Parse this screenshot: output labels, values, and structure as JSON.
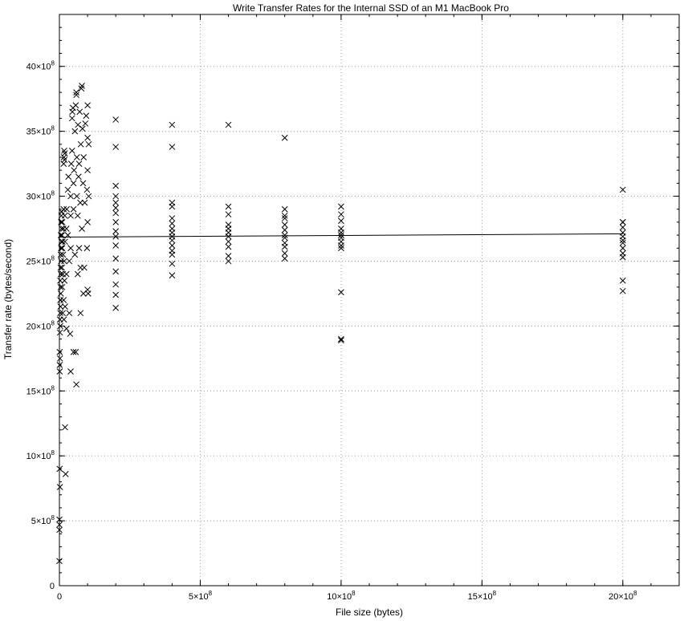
{
  "chart_data": {
    "type": "scatter",
    "title": "Write Transfer Rates for the Internal SSD of an M1 MacBook Pro",
    "xlabel": "File size (bytes)",
    "ylabel": "Transfer rate (bytes/second)",
    "xlim": [
      0,
      2200000000
    ],
    "ylim": [
      0,
      4400000000
    ],
    "x_major_ticks": [
      0,
      500000000,
      1000000000,
      1500000000,
      2000000000
    ],
    "y_major_ticks": [
      0,
      500000000,
      1000000000,
      1500000000,
      2000000000,
      2500000000,
      3000000000,
      3500000000,
      4000000000
    ],
    "x_tick_labels": [
      {
        "base": "0",
        "exp": ""
      },
      {
        "base": "5×10",
        "exp": "8"
      },
      {
        "base": "10×10",
        "exp": "8"
      },
      {
        "base": "15×10",
        "exp": "8"
      },
      {
        "base": "20×10",
        "exp": "8"
      }
    ],
    "y_tick_labels": [
      {
        "base": "0",
        "exp": ""
      },
      {
        "base": "5×10",
        "exp": "8"
      },
      {
        "base": "10×10",
        "exp": "8"
      },
      {
        "base": "15×10",
        "exp": "8"
      },
      {
        "base": "20×10",
        "exp": "8"
      },
      {
        "base": "25×10",
        "exp": "8"
      },
      {
        "base": "30×10",
        "exp": "8"
      },
      {
        "base": "35×10",
        "exp": "8"
      },
      {
        "base": "40×10",
        "exp": "8"
      }
    ],
    "grid": true,
    "marker": "x",
    "series": [
      {
        "points": [
          [
            0,
            190000000
          ],
          [
            0,
            430000000
          ],
          [
            0,
            470000000
          ],
          [
            0,
            510000000
          ],
          [
            1000000,
            900000000
          ],
          [
            2000000,
            760000000
          ],
          [
            1000000,
            1650000000
          ],
          [
            1000000,
            1700000000
          ],
          [
            2000000,
            1750000000
          ],
          [
            1000000,
            1800000000
          ],
          [
            2000000,
            1950000000
          ],
          [
            3000000,
            2000000000
          ],
          [
            2000000,
            2050000000
          ],
          [
            3000000,
            2100000000
          ],
          [
            4000000,
            2150000000
          ],
          [
            3000000,
            2200000000
          ],
          [
            5000000,
            2250000000
          ],
          [
            4000000,
            2300000000
          ],
          [
            3000000,
            2350000000
          ],
          [
            5000000,
            2400000000
          ],
          [
            4000000,
            2450000000
          ],
          [
            6000000,
            2500000000
          ],
          [
            5000000,
            2550000000
          ],
          [
            6000000,
            2600000000
          ],
          [
            7000000,
            2650000000
          ],
          [
            5000000,
            2700000000
          ],
          [
            8000000,
            2750000000
          ],
          [
            6000000,
            2800000000
          ],
          [
            7000000,
            2850000000
          ],
          [
            8000000,
            2880000000
          ],
          [
            9000000,
            2700000000
          ],
          [
            9000000,
            2450000000
          ],
          [
            10000000,
            2300000000
          ],
          [
            10000000,
            2600000000
          ],
          [
            11000000,
            2650000000
          ],
          [
            10000000,
            2800000000
          ],
          [
            12000000,
            2100000000
          ],
          [
            12000000,
            2400000000
          ],
          [
            13000000,
            2550000000
          ],
          [
            14000000,
            2750000000
          ],
          [
            15000000,
            2200000000
          ],
          [
            15000000,
            2900000000
          ],
          [
            16000000,
            2050000000
          ],
          [
            17000000,
            2500000000
          ],
          [
            18000000,
            2350000000
          ],
          [
            19000000,
            2850000000
          ],
          [
            20000000,
            2150000000
          ],
          [
            20000000,
            2650000000
          ],
          [
            15000000,
            3250000000
          ],
          [
            16000000,
            3300000000
          ],
          [
            17000000,
            3350000000
          ],
          [
            18000000,
            3280000000
          ],
          [
            19000000,
            3330000000
          ],
          [
            20000000,
            1220000000
          ],
          [
            22000000,
            860000000
          ],
          [
            25000000,
            1980000000
          ],
          [
            25000000,
            2400000000
          ],
          [
            25000000,
            2750000000
          ],
          [
            26000000,
            2900000000
          ],
          [
            30000000,
            2700000000
          ],
          [
            30000000,
            3050000000
          ],
          [
            32000000,
            3150000000
          ],
          [
            35000000,
            2500000000
          ],
          [
            35000000,
            2100000000
          ],
          [
            38000000,
            1940000000
          ],
          [
            40000000,
            1650000000
          ],
          [
            40000000,
            2600000000
          ],
          [
            40000000,
            2850000000
          ],
          [
            40000000,
            3000000000
          ],
          [
            42000000,
            3250000000
          ],
          [
            45000000,
            3350000000
          ],
          [
            45000000,
            3600000000
          ],
          [
            46000000,
            3650000000
          ],
          [
            48000000,
            3680000000
          ],
          [
            50000000,
            1800000000
          ],
          [
            50000000,
            2900000000
          ],
          [
            50000000,
            3100000000
          ],
          [
            52000000,
            3200000000
          ],
          [
            55000000,
            3500000000
          ],
          [
            55000000,
            2550000000
          ],
          [
            58000000,
            3700000000
          ],
          [
            58000000,
            1800000000
          ],
          [
            60000000,
            3780000000
          ],
          [
            60000000,
            3800000000
          ],
          [
            60000000,
            1550000000
          ],
          [
            62000000,
            3000000000
          ],
          [
            62000000,
            3300000000
          ],
          [
            65000000,
            2400000000
          ],
          [
            65000000,
            2850000000
          ],
          [
            66000000,
            3550000000
          ],
          [
            68000000,
            3150000000
          ],
          [
            70000000,
            2600000000
          ],
          [
            70000000,
            3250000000
          ],
          [
            72000000,
            3650000000
          ],
          [
            74000000,
            2950000000
          ],
          [
            75000000,
            2100000000
          ],
          [
            75000000,
            2450000000
          ],
          [
            76000000,
            3400000000
          ],
          [
            78000000,
            3830000000
          ],
          [
            80000000,
            3850000000
          ],
          [
            80000000,
            2750000000
          ],
          [
            82000000,
            3520000000
          ],
          [
            84000000,
            3100000000
          ],
          [
            85000000,
            2250000000
          ],
          [
            86000000,
            3300000000
          ],
          [
            88000000,
            2450000000
          ],
          [
            90000000,
            2950000000
          ],
          [
            92000000,
            3560000000
          ],
          [
            95000000,
            3620000000
          ],
          [
            98000000,
            2600000000
          ],
          [
            98000000,
            3050000000
          ],
          [
            100000000,
            2280000000
          ],
          [
            100000000,
            2800000000
          ],
          [
            100000000,
            3200000000
          ],
          [
            100000000,
            3450000000
          ],
          [
            100000000,
            3700000000
          ],
          [
            102000000,
            2250000000
          ],
          [
            104000000,
            3000000000
          ],
          [
            104000000,
            3400000000
          ],
          [
            200000000,
            2140000000
          ],
          [
            200000000,
            2240000000
          ],
          [
            200000000,
            2320000000
          ],
          [
            200000000,
            2420000000
          ],
          [
            200000000,
            2520000000
          ],
          [
            200000000,
            2620000000
          ],
          [
            200000000,
            2690000000
          ],
          [
            200000000,
            2730000000
          ],
          [
            200000000,
            2800000000
          ],
          [
            200000000,
            2870000000
          ],
          [
            200000000,
            2910000000
          ],
          [
            200000000,
            2950000000
          ],
          [
            200000000,
            3000000000
          ],
          [
            200000000,
            3080000000
          ],
          [
            200000000,
            3380000000
          ],
          [
            200000000,
            3590000000
          ],
          [
            400000000,
            2390000000
          ],
          [
            400000000,
            2480000000
          ],
          [
            400000000,
            2550000000
          ],
          [
            400000000,
            2580000000
          ],
          [
            400000000,
            2620000000
          ],
          [
            400000000,
            2660000000
          ],
          [
            400000000,
            2690000000
          ],
          [
            400000000,
            2720000000
          ],
          [
            400000000,
            2750000000
          ],
          [
            400000000,
            2790000000
          ],
          [
            400000000,
            2830000000
          ],
          [
            400000000,
            2920000000
          ],
          [
            400000000,
            2950000000
          ],
          [
            400000000,
            3380000000
          ],
          [
            400000000,
            3550000000
          ],
          [
            600000000,
            2500000000
          ],
          [
            600000000,
            2540000000
          ],
          [
            600000000,
            2610000000
          ],
          [
            600000000,
            2650000000
          ],
          [
            600000000,
            2690000000
          ],
          [
            600000000,
            2720000000
          ],
          [
            600000000,
            2750000000
          ],
          [
            600000000,
            2780000000
          ],
          [
            600000000,
            2860000000
          ],
          [
            600000000,
            2920000000
          ],
          [
            600000000,
            3550000000
          ],
          [
            800000000,
            2520000000
          ],
          [
            800000000,
            2560000000
          ],
          [
            800000000,
            2610000000
          ],
          [
            800000000,
            2640000000
          ],
          [
            800000000,
            2680000000
          ],
          [
            800000000,
            2700000000
          ],
          [
            800000000,
            2740000000
          ],
          [
            800000000,
            2780000000
          ],
          [
            800000000,
            2830000000
          ],
          [
            800000000,
            2850000000
          ],
          [
            800000000,
            2900000000
          ],
          [
            800000000,
            3450000000
          ],
          [
            1000000000,
            1890000000
          ],
          [
            1000000000,
            1900000000
          ],
          [
            1000000000,
            2260000000
          ],
          [
            1000000000,
            2600000000
          ],
          [
            1000000000,
            2620000000
          ],
          [
            1000000000,
            2650000000
          ],
          [
            1000000000,
            2680000000
          ],
          [
            1000000000,
            2700000000
          ],
          [
            1000000000,
            2720000000
          ],
          [
            1000000000,
            2750000000
          ],
          [
            1000000000,
            2810000000
          ],
          [
            1000000000,
            2860000000
          ],
          [
            1000000000,
            2920000000
          ],
          [
            2000000000,
            2270000000
          ],
          [
            2000000000,
            2350000000
          ],
          [
            2000000000,
            2530000000
          ],
          [
            2000000000,
            2560000000
          ],
          [
            2000000000,
            2600000000
          ],
          [
            2000000000,
            2640000000
          ],
          [
            2000000000,
            2660000000
          ],
          [
            2000000000,
            2690000000
          ],
          [
            2000000000,
            2720000000
          ],
          [
            2000000000,
            2760000000
          ],
          [
            2000000000,
            2800000000
          ],
          [
            2000000000,
            2800000000
          ],
          [
            2000000000,
            3050000000
          ]
        ]
      }
    ],
    "fit_line": {
      "x": [
        0,
        2000000000
      ],
      "y": [
        2685000000,
        2710000000
      ]
    }
  }
}
